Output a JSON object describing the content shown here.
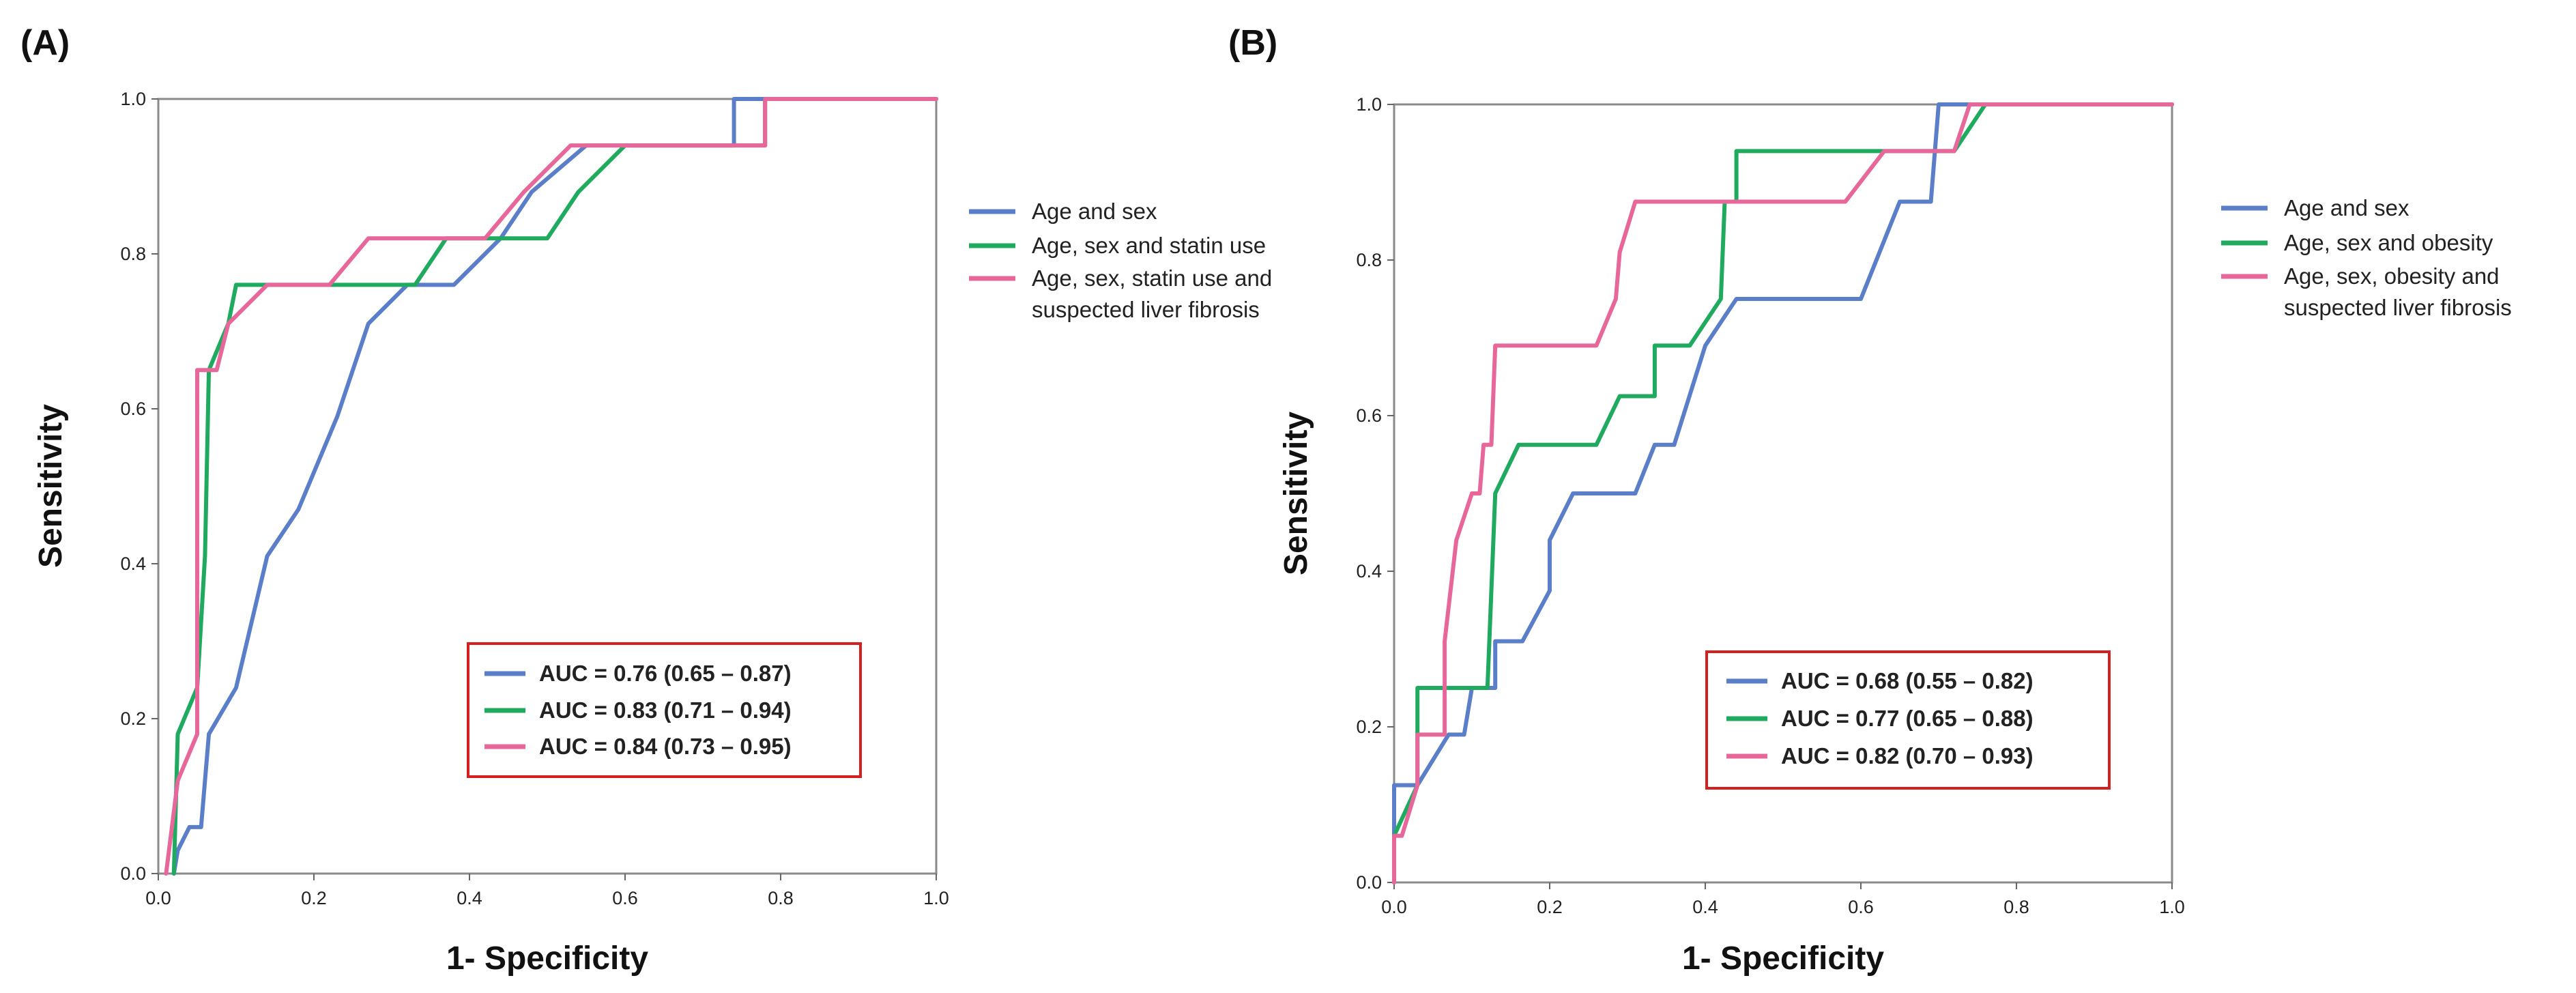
{
  "chart_data": [
    {
      "type": "line",
      "panel_label": "(A)",
      "xlabel": "1- Specificity",
      "ylabel": "Sensitivity",
      "xlim": [
        0,
        1
      ],
      "ylim": [
        0,
        1
      ],
      "x_ticks": [
        "0.0",
        "0.2",
        "0.4",
        "0.6",
        "0.8",
        "1.0"
      ],
      "y_ticks": [
        "0.0",
        "0.2",
        "0.4",
        "0.6",
        "0.8",
        "1.0"
      ],
      "series": [
        {
          "name": "Age and sex",
          "color": "#5b7ec9",
          "auc_label": "AUC = 0.76 (0.65 – 0.87)",
          "points": [
            [
              0.02,
              0.0
            ],
            [
              0.025,
              0.03
            ],
            [
              0.04,
              0.06
            ],
            [
              0.055,
              0.06
            ],
            [
              0.065,
              0.18
            ],
            [
              0.1,
              0.24
            ],
            [
              0.14,
              0.41
            ],
            [
              0.18,
              0.47
            ],
            [
              0.23,
              0.59
            ],
            [
              0.27,
              0.71
            ],
            [
              0.32,
              0.76
            ],
            [
              0.38,
              0.76
            ],
            [
              0.44,
              0.82
            ],
            [
              0.48,
              0.88
            ],
            [
              0.55,
              0.94
            ],
            [
              0.74,
              0.94
            ],
            [
              0.74,
              1.0
            ],
            [
              1.0,
              1.0
            ]
          ]
        },
        {
          "name": "Age, sex and statin use",
          "color": "#1faa5f",
          "auc_label": "AUC = 0.83 (0.71 – 0.94)",
          "points": [
            [
              0.02,
              0.0
            ],
            [
              0.025,
              0.18
            ],
            [
              0.05,
              0.24
            ],
            [
              0.06,
              0.41
            ],
            [
              0.065,
              0.65
            ],
            [
              0.09,
              0.71
            ],
            [
              0.1,
              0.76
            ],
            [
              0.33,
              0.76
            ],
            [
              0.37,
              0.82
            ],
            [
              0.5,
              0.82
            ],
            [
              0.54,
              0.88
            ],
            [
              0.6,
              0.94
            ],
            [
              0.78,
              0.94
            ],
            [
              0.78,
              1.0
            ],
            [
              1.0,
              1.0
            ]
          ]
        },
        {
          "name": "Age, sex, statin use and suspected liver fibrosis",
          "color": "#e8679a",
          "auc_label": "AUC = 0.84 (0.73 – 0.95)",
          "points": [
            [
              0.01,
              0.0
            ],
            [
              0.025,
              0.12
            ],
            [
              0.05,
              0.18
            ],
            [
              0.05,
              0.65
            ],
            [
              0.075,
              0.65
            ],
            [
              0.09,
              0.71
            ],
            [
              0.14,
              0.76
            ],
            [
              0.22,
              0.76
            ],
            [
              0.27,
              0.82
            ],
            [
              0.42,
              0.82
            ],
            [
              0.47,
              0.88
            ],
            [
              0.53,
              0.94
            ],
            [
              0.78,
              0.94
            ],
            [
              0.78,
              1.0
            ],
            [
              1.0,
              1.0
            ]
          ]
        }
      ]
    },
    {
      "type": "line",
      "panel_label": "(B)",
      "xlabel": "1- Specificity",
      "ylabel": "Sensitivity",
      "xlim": [
        0,
        1
      ],
      "ylim": [
        0,
        1
      ],
      "x_ticks": [
        "0.0",
        "0.2",
        "0.4",
        "0.6",
        "0.8",
        "1.0"
      ],
      "y_ticks": [
        "0.0",
        "0.2",
        "0.4",
        "0.6",
        "0.8",
        "1.0"
      ],
      "series": [
        {
          "name": "Age and sex",
          "color": "#5b7ec9",
          "auc_label": "AUC = 0.68 (0.55 – 0.82)",
          "points": [
            [
              0.0,
              0.0
            ],
            [
              0.0,
              0.125
            ],
            [
              0.03,
              0.125
            ],
            [
              0.07,
              0.19
            ],
            [
              0.09,
              0.19
            ],
            [
              0.1,
              0.25
            ],
            [
              0.13,
              0.25
            ],
            [
              0.13,
              0.31
            ],
            [
              0.165,
              0.31
            ],
            [
              0.2,
              0.375
            ],
            [
              0.2,
              0.44
            ],
            [
              0.23,
              0.5
            ],
            [
              0.31,
              0.5
            ],
            [
              0.335,
              0.5625
            ],
            [
              0.36,
              0.5625
            ],
            [
              0.4,
              0.69
            ],
            [
              0.44,
              0.75
            ],
            [
              0.6,
              0.75
            ],
            [
              0.65,
              0.875
            ],
            [
              0.69,
              0.875
            ],
            [
              0.7,
              1.0
            ],
            [
              1.0,
              1.0
            ]
          ]
        },
        {
          "name": "Age, sex and obesity",
          "color": "#1faa5f",
          "auc_label": "AUC = 0.77 (0.65 – 0.88)",
          "points": [
            [
              0.0,
              0.0
            ],
            [
              0.0,
              0.06
            ],
            [
              0.03,
              0.125
            ],
            [
              0.03,
              0.25
            ],
            [
              0.12,
              0.25
            ],
            [
              0.13,
              0.5
            ],
            [
              0.16,
              0.5625
            ],
            [
              0.26,
              0.5625
            ],
            [
              0.29,
              0.625
            ],
            [
              0.335,
              0.625
            ],
            [
              0.335,
              0.69
            ],
            [
              0.38,
              0.69
            ],
            [
              0.42,
              0.75
            ],
            [
              0.425,
              0.875
            ],
            [
              0.44,
              0.875
            ],
            [
              0.44,
              0.94
            ],
            [
              0.72,
              0.94
            ],
            [
              0.76,
              1.0
            ],
            [
              1.0,
              1.0
            ]
          ]
        },
        {
          "name": "Age, sex, obesity and suspected liver fibrosis",
          "color": "#e8679a",
          "auc_label": "AUC = 0.82 (0.70 – 0.93)",
          "points": [
            [
              0.0,
              0.0
            ],
            [
              0.0,
              0.06
            ],
            [
              0.01,
              0.06
            ],
            [
              0.03,
              0.125
            ],
            [
              0.03,
              0.19
            ],
            [
              0.065,
              0.19
            ],
            [
              0.065,
              0.31
            ],
            [
              0.08,
              0.44
            ],
            [
              0.1,
              0.5
            ],
            [
              0.11,
              0.5
            ],
            [
              0.115,
              0.5625
            ],
            [
              0.125,
              0.5625
            ],
            [
              0.13,
              0.69
            ],
            [
              0.26,
              0.69
            ],
            [
              0.285,
              0.75
            ],
            [
              0.29,
              0.81
            ],
            [
              0.31,
              0.875
            ],
            [
              0.58,
              0.875
            ],
            [
              0.63,
              0.94
            ],
            [
              0.72,
              0.94
            ],
            [
              0.74,
              1.0
            ],
            [
              1.0,
              1.0
            ]
          ]
        }
      ]
    }
  ]
}
